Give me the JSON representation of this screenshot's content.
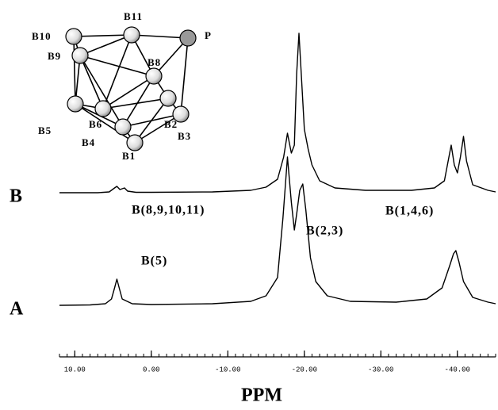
{
  "chart_data": {
    "type": "line",
    "xlabel": "PPM",
    "xlim": [
      12,
      -45
    ],
    "xticks": [
      {
        "value": 10,
        "label": "10.00"
      },
      {
        "value": 0,
        "label": "0.00"
      },
      {
        "value": -10,
        "label": "-10.00"
      },
      {
        "value": -20,
        "label": "-20.00"
      },
      {
        "value": -30,
        "label": "-30.00"
      },
      {
        "value": -40,
        "label": "-40.00"
      }
    ],
    "ylim": [
      0,
      210
    ],
    "color": "#000000",
    "series": [
      {
        "name": "B",
        "x": [
          12,
          7,
          5.5,
          4.8,
          4.5,
          4.1,
          3.8,
          3.5,
          3.1,
          2,
          0,
          -8,
          -13,
          -15,
          -16.5,
          -17.3,
          -17.8,
          -18.3,
          -18.7,
          -19.0,
          -19.3,
          -19.6,
          -20.0,
          -20.5,
          -21.0,
          -22,
          -24,
          -28,
          -34,
          -37,
          -38.3,
          -38.9,
          -39.2,
          -39.6,
          -40.0,
          -40.4,
          -40.8,
          -41.2,
          -42,
          -44,
          -45
        ],
        "values": [
          0,
          0,
          1,
          6,
          8,
          4,
          5,
          6,
          2,
          0.5,
          0.5,
          1,
          3,
          7,
          17,
          45,
          75,
          50,
          60,
          150,
          201,
          150,
          80,
          55,
          35,
          15,
          6,
          3,
          3,
          6,
          15,
          45,
          60,
          35,
          25,
          45,
          71,
          40,
          10,
          3,
          1
        ]
      },
      {
        "name": "A",
        "x": [
          12,
          8,
          6,
          5.2,
          4.8,
          4.5,
          4.2,
          3.8,
          2.5,
          0,
          -8,
          -13,
          -15,
          -16.5,
          -17.2,
          -17.8,
          -18.3,
          -18.7,
          -19.0,
          -19.4,
          -19.8,
          -20.2,
          -20.8,
          -21.5,
          -23,
          -26,
          -32,
          -36,
          -38,
          -39.0,
          -39.5,
          -39.8,
          -40.2,
          -40.8,
          -42,
          -44,
          -45
        ],
        "values": [
          0,
          0.5,
          2,
          8,
          22,
          33,
          22,
          8,
          2,
          1,
          2,
          5,
          12,
          35,
          110,
          187,
          130,
          95,
          115,
          145,
          153,
          120,
          60,
          30,
          12,
          5,
          4,
          8,
          22,
          50,
          65,
          69,
          55,
          30,
          10,
          4,
          2
        ]
      }
    ],
    "annotations": [
      "B(8,9,10,11)",
      "B(2,3)",
      "B(1,4,6)",
      "B(5)"
    ],
    "structure_labels": [
      "B10",
      "B11",
      "P",
      "B9",
      "B8",
      "B6",
      "B2",
      "B5",
      "B4",
      "B3",
      "B1"
    ]
  }
}
